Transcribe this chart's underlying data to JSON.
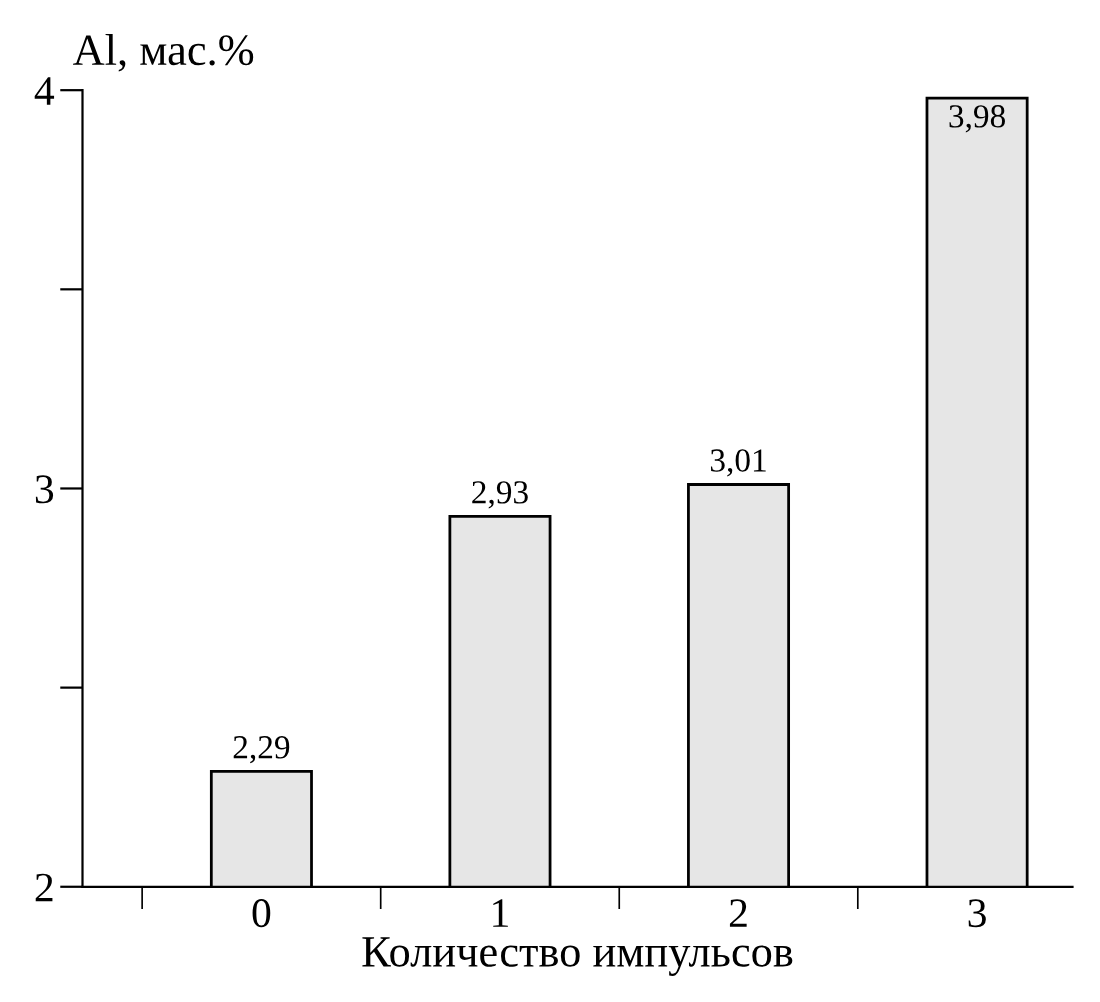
{
  "chart_data": {
    "type": "bar",
    "categories": [
      "0",
      "1",
      "2",
      "3"
    ],
    "values": [
      2.29,
      2.93,
      3.01,
      3.98
    ],
    "value_labels": [
      "2,29",
      "2,93",
      "3,01",
      "3,98"
    ],
    "color": "#e6e6e6",
    "ylabel": "Al, мас.%",
    "xlabel": "Количество импульсов",
    "ylim": [
      2,
      4
    ],
    "yticks": [
      2,
      {
        "value": 2.5,
        "label": null
      },
      3,
      {
        "value": 3.5,
        "label": null
      },
      4
    ],
    "grid": false
  }
}
